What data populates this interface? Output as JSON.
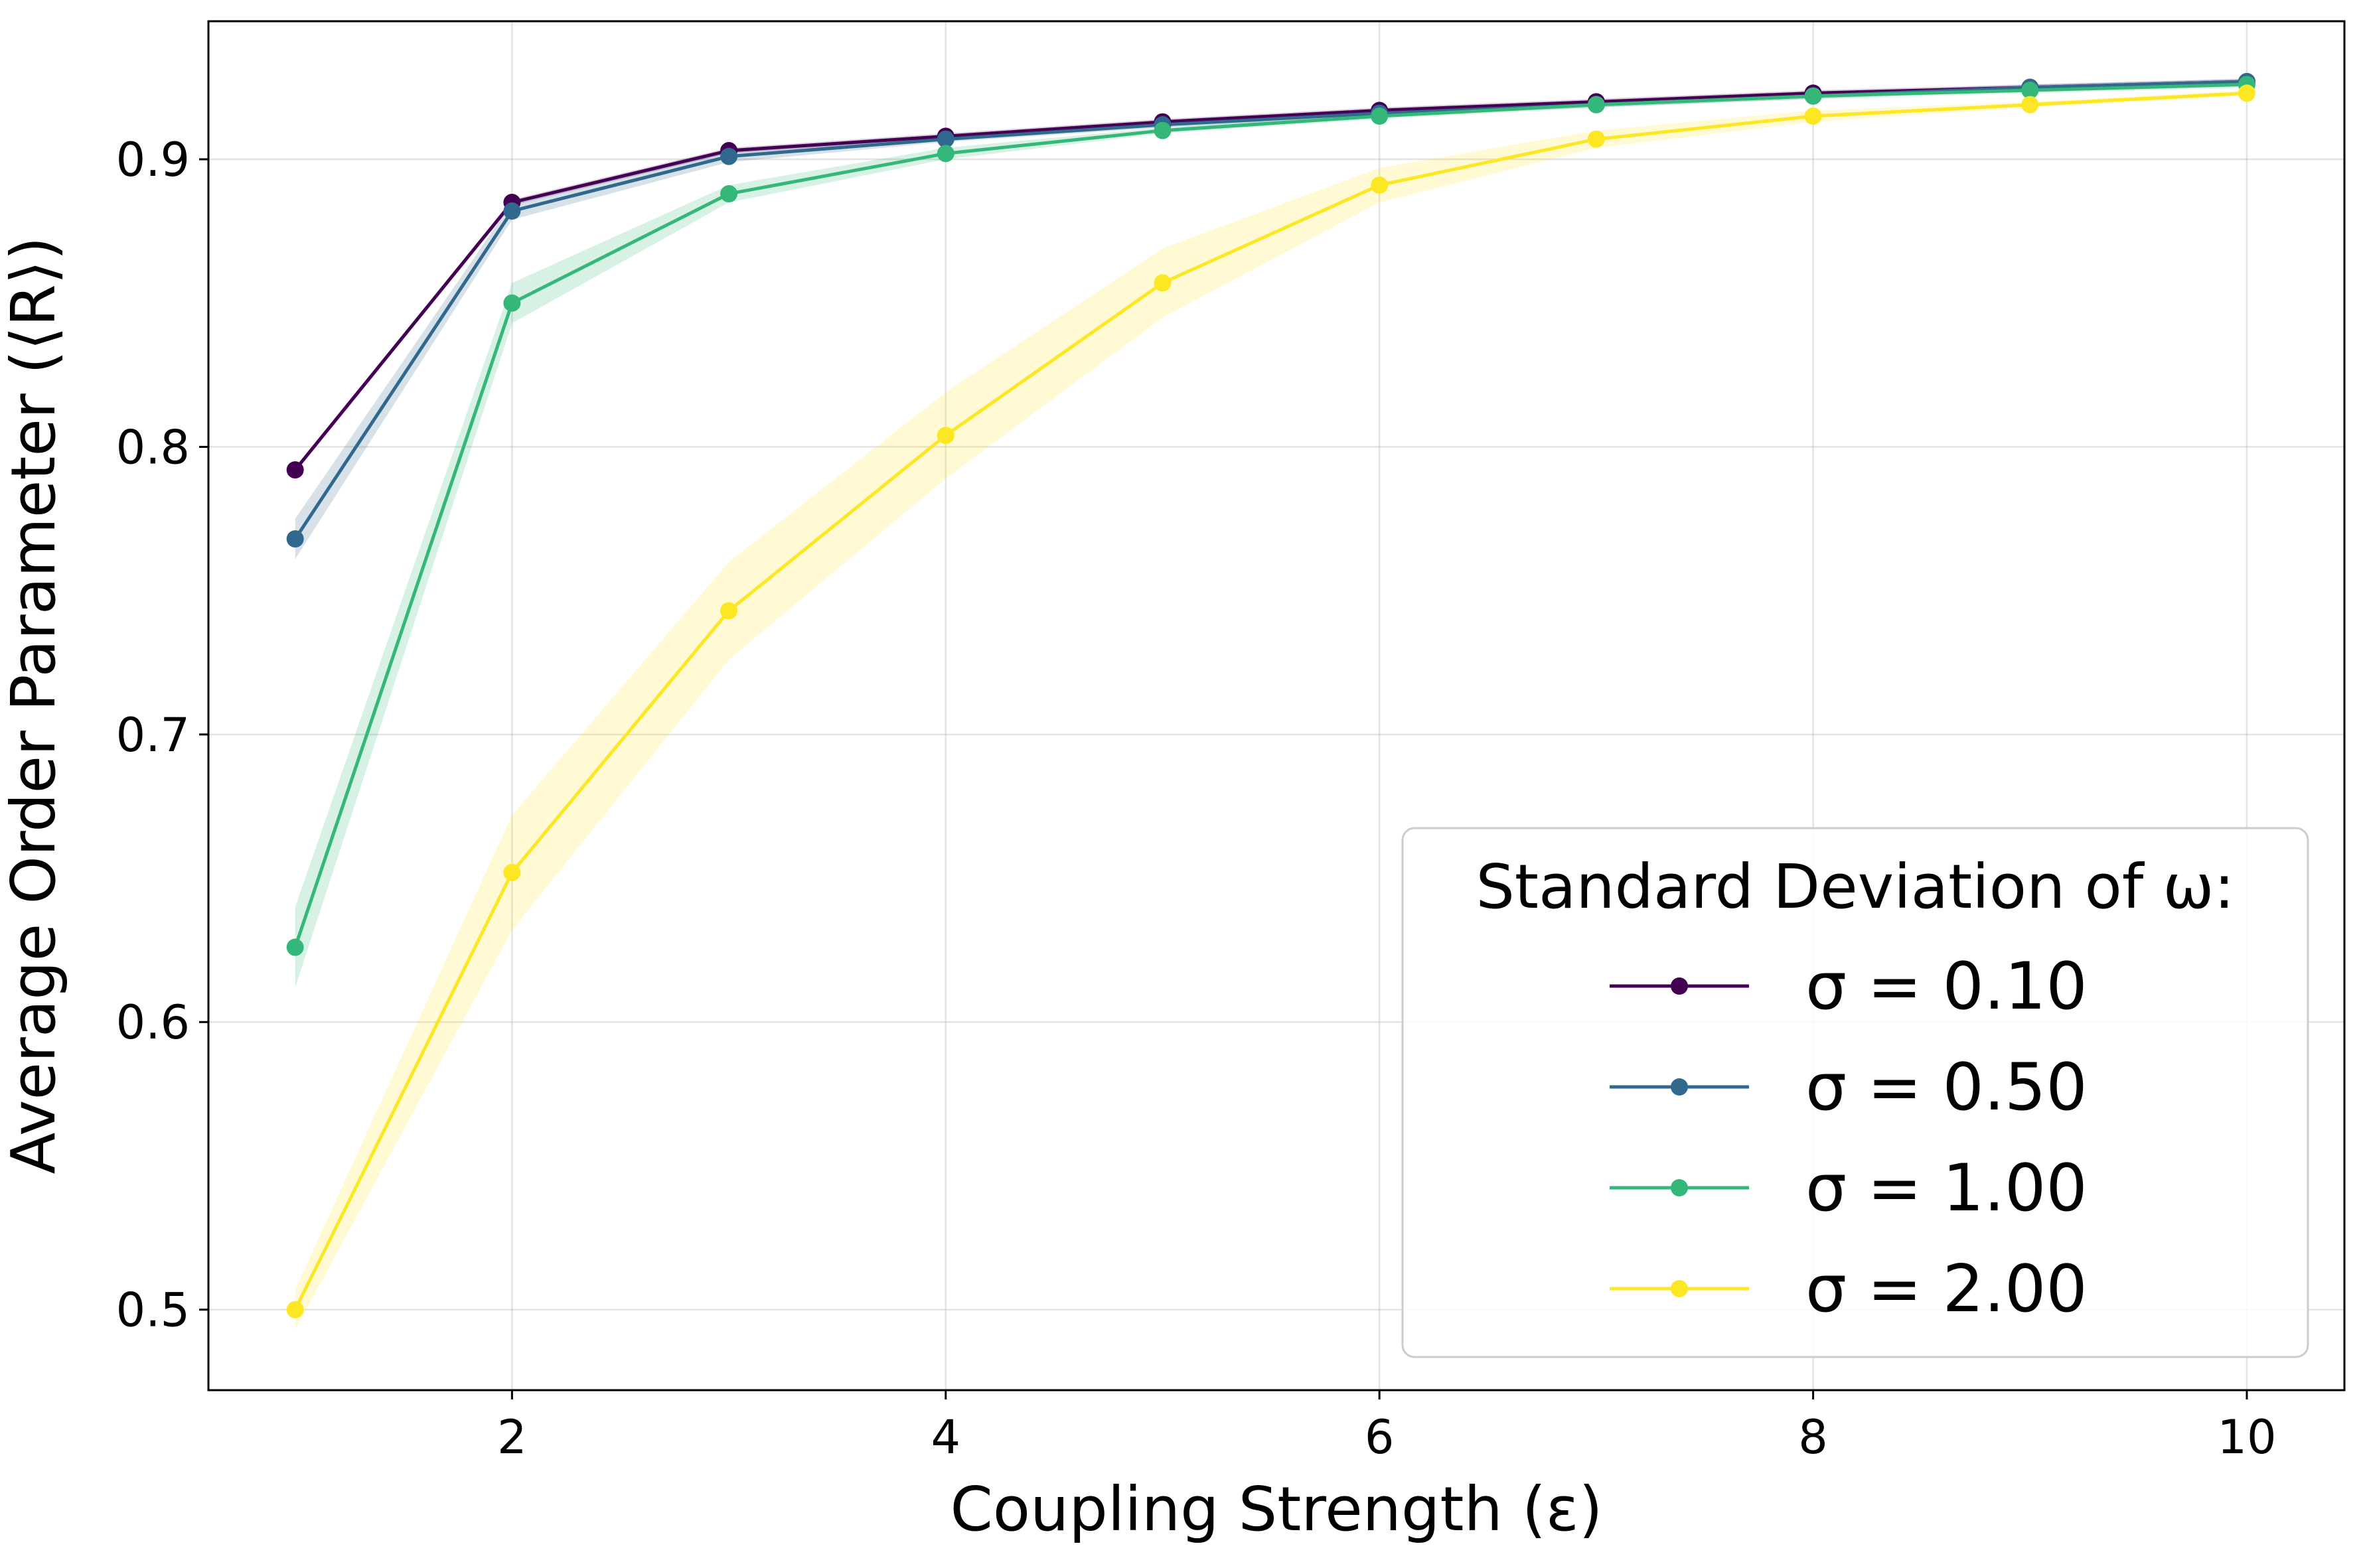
{
  "chart_data": {
    "type": "line",
    "title": "",
    "xlabel": "Coupling Strength (ε)",
    "ylabel": "Average Order Parameter (⟨R⟩)",
    "xlim": [
      0.6,
      10.45
    ],
    "ylim": [
      0.472,
      0.948
    ],
    "x_ticks": [
      2,
      4,
      6,
      8,
      10
    ],
    "x_tick_labels": [
      "2",
      "4",
      "6",
      "8",
      "10"
    ],
    "y_ticks": [
      0.5,
      0.6,
      0.7,
      0.8,
      0.9
    ],
    "y_tick_labels": [
      "0.5",
      "0.6",
      "0.7",
      "0.8",
      "0.9"
    ],
    "grid": true,
    "legend_title": "Standard Deviation of ω:",
    "legend_position": "lower-right",
    "x": [
      1,
      2,
      3,
      4,
      5,
      6,
      7,
      8,
      9,
      10
    ],
    "series": [
      {
        "name": "σ = 0.10",
        "color": "#440154",
        "values": [
          0.792,
          0.885,
          0.903,
          0.908,
          0.913,
          0.917,
          0.92,
          0.923,
          0.925,
          0.927
        ],
        "lower": [
          0.791,
          0.884,
          0.902,
          0.907,
          0.912,
          0.916,
          0.919,
          0.922,
          0.924,
          0.926
        ],
        "upper": [
          0.793,
          0.886,
          0.904,
          0.909,
          0.914,
          0.918,
          0.921,
          0.924,
          0.926,
          0.928
        ]
      },
      {
        "name": "σ = 0.50",
        "color": "#31688e",
        "values": [
          0.768,
          0.882,
          0.901,
          0.907,
          0.912,
          0.916,
          0.919,
          0.922,
          0.925,
          0.927
        ],
        "lower": [
          0.761,
          0.879,
          0.899,
          0.906,
          0.911,
          0.915,
          0.918,
          0.921,
          0.924,
          0.926
        ],
        "upper": [
          0.775,
          0.885,
          0.903,
          0.908,
          0.913,
          0.917,
          0.92,
          0.923,
          0.926,
          0.928
        ]
      },
      {
        "name": "σ = 1.00",
        "color": "#35b779",
        "values": [
          0.626,
          0.85,
          0.888,
          0.902,
          0.91,
          0.915,
          0.919,
          0.922,
          0.924,
          0.926
        ],
        "lower": [
          0.612,
          0.843,
          0.885,
          0.9,
          0.909,
          0.914,
          0.918,
          0.921,
          0.923,
          0.925
        ],
        "upper": [
          0.64,
          0.857,
          0.891,
          0.904,
          0.911,
          0.916,
          0.92,
          0.923,
          0.925,
          0.927
        ]
      },
      {
        "name": "σ = 2.00",
        "color": "#fde725",
        "values": [
          0.5,
          0.652,
          0.743,
          0.804,
          0.857,
          0.891,
          0.907,
          0.915,
          0.919,
          0.923
        ],
        "lower": [
          0.493,
          0.632,
          0.726,
          0.789,
          0.845,
          0.885,
          0.904,
          0.913,
          0.918,
          0.922
        ],
        "upper": [
          0.507,
          0.672,
          0.76,
          0.819,
          0.869,
          0.897,
          0.91,
          0.917,
          0.92,
          0.924
        ]
      }
    ]
  }
}
